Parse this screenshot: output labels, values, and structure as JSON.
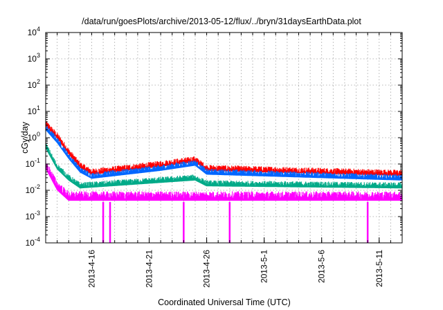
{
  "chart_data": {
    "type": "line",
    "title": "/data/run/goesPlots/archive/2013-05-12/flux/../bryn/31daysEarthData.plot",
    "xlabel": "Coordinated Universal Time (UTC)",
    "ylabel": "cGy/day",
    "yscale": "log",
    "ylim": [
      0.0001,
      10000
    ],
    "y_ticks": [
      {
        "value": 0.0001,
        "base": "10",
        "exp": "-4"
      },
      {
        "value": 0.001,
        "base": "10",
        "exp": "-3"
      },
      {
        "value": 0.01,
        "base": "10",
        "exp": "-2"
      },
      {
        "value": 0.1,
        "base": "10",
        "exp": "-1"
      },
      {
        "value": 1,
        "base": "10",
        "exp": "0"
      },
      {
        "value": 10,
        "base": "10",
        "exp": "1"
      },
      {
        "value": 100,
        "base": "10",
        "exp": "2"
      },
      {
        "value": 1000,
        "base": "10",
        "exp": "3"
      },
      {
        "value": 10000,
        "base": "10",
        "exp": "4"
      }
    ],
    "xlim": [
      "2013-04-12",
      "2013-05-13"
    ],
    "x_tick_labels": [
      {
        "date": "2013-04-16",
        "label": "2013-4-16"
      },
      {
        "date": "2013-04-21",
        "label": "2013-4-21"
      },
      {
        "date": "2013-04-26",
        "label": "2013-4-26"
      },
      {
        "date": "2013-05-01",
        "label": "2013-5-1"
      },
      {
        "date": "2013-05-06",
        "label": "2013-5-6"
      },
      {
        "date": "2013-05-11",
        "label": "2013-5-11"
      }
    ],
    "grid": true,
    "series": [
      {
        "color": "#ff0000",
        "base": 0.045,
        "noise": 0.012,
        "points": [
          [
            "2013-04-12",
            3.5
          ],
          [
            "2013-04-13",
            1.2
          ],
          [
            "2013-04-14",
            0.3
          ],
          [
            "2013-04-15",
            0.09
          ],
          [
            "2013-04-16",
            0.05
          ],
          [
            "2013-04-22",
            0.1
          ],
          [
            "2013-04-25",
            0.15
          ],
          [
            "2013-04-26",
            0.07
          ],
          [
            "2013-05-13",
            0.045
          ]
        ]
      },
      {
        "color": "#0066ff",
        "base": 0.03,
        "noise": 0.008,
        "points": [
          [
            "2013-04-12",
            2.5
          ],
          [
            "2013-04-13",
            0.8
          ],
          [
            "2013-04-14",
            0.2
          ],
          [
            "2013-04-15",
            0.06
          ],
          [
            "2013-04-16",
            0.035
          ],
          [
            "2013-04-22",
            0.07
          ],
          [
            "2013-04-25",
            0.11
          ],
          [
            "2013-04-26",
            0.05
          ],
          [
            "2013-05-13",
            0.03
          ]
        ]
      },
      {
        "color": "#00aa88",
        "base": 0.015,
        "noise": 0.004,
        "points": [
          [
            "2013-04-12",
            0.5
          ],
          [
            "2013-04-13",
            0.08
          ],
          [
            "2013-04-14",
            0.03
          ],
          [
            "2013-04-15",
            0.015
          ],
          [
            "2013-04-25",
            0.03
          ],
          [
            "2013-04-26",
            0.018
          ],
          [
            "2013-05-13",
            0.015
          ]
        ]
      },
      {
        "color": "#ff00ff",
        "base": 0.006,
        "noise": 0.0025,
        "points": [
          [
            "2013-04-12",
            0.1
          ],
          [
            "2013-04-13",
            0.015
          ],
          [
            "2013-04-14",
            0.006
          ],
          [
            "2013-05-13",
            0.006
          ]
        ],
        "dropouts": [
          "2013-04-17",
          "2013-04-17.6",
          "2013-04-24",
          "2013-04-28",
          "2013-05-10"
        ]
      }
    ]
  }
}
